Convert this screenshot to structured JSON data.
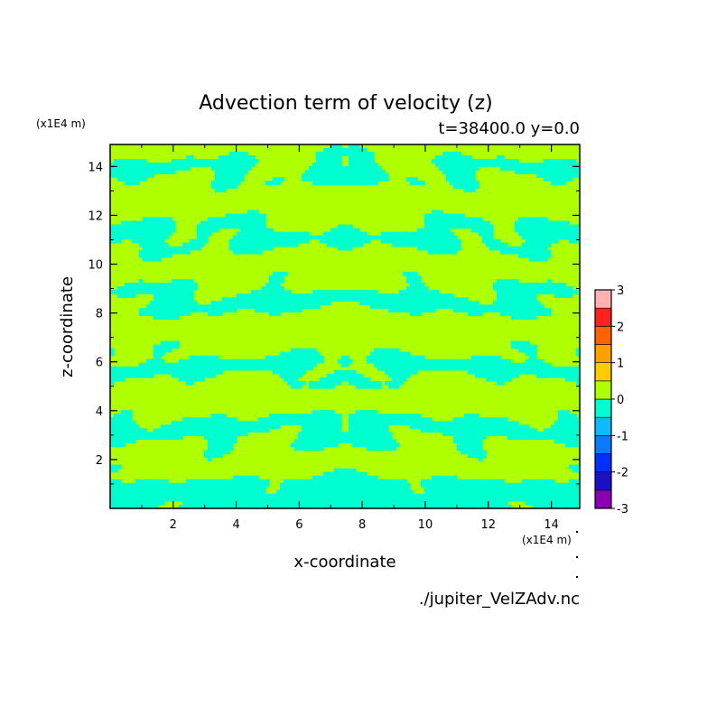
{
  "chart_data": {
    "type": "heatmap",
    "title": "Advection term of velocity (z)",
    "subtitle": "t=38400.0 y=0.0",
    "xlabel": "x-coordinate",
    "ylabel": "z-coordinate",
    "x_unit": "(x1E4 m)",
    "y_unit": "(x1E4 m)",
    "xlim": [
      0,
      14.9
    ],
    "ylim": [
      0,
      14.9
    ],
    "x_ticks": [
      2,
      4,
      6,
      8,
      10,
      12,
      14
    ],
    "y_ticks": [
      2,
      4,
      6,
      8,
      10,
      12,
      14
    ],
    "x_tick_labels": [
      "2",
      "4",
      "6",
      "8",
      "10",
      "12",
      "14"
    ],
    "y_tick_labels": [
      "2",
      "4",
      "6",
      "8",
      "10",
      "12",
      "14"
    ],
    "colorbar": {
      "levels": [
        -3,
        -2.5,
        -2,
        -1.5,
        -1,
        -0.5,
        0,
        0.5,
        1,
        1.5,
        2,
        2.5,
        3
      ],
      "tick_values": [
        -3,
        -2,
        -1,
        0,
        1,
        2,
        3
      ],
      "tick_labels": [
        "-3",
        "-2",
        "-1",
        "0",
        "1",
        "2",
        "3"
      ],
      "colors": [
        "#8a00b0",
        "#1a10c8",
        "#0030ff",
        "#0a7aff",
        "#10b8ff",
        "#00ffd0",
        "#b0ff00",
        "#ffcc00",
        "#ffa000",
        "#ff6000",
        "#ff2020",
        "#ffb0b0"
      ]
    },
    "field_description_levels_present": [
      -0.5,
      0.5
    ],
    "grid": false
  },
  "source_file": "./jupiter_VelZAdv.nc"
}
